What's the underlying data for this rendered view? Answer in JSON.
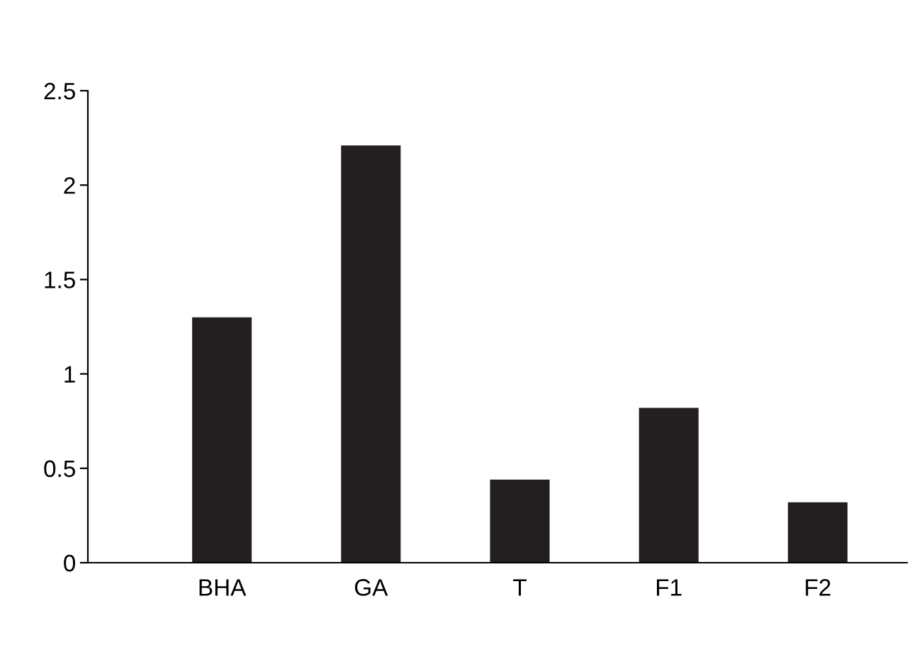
{
  "chart_data": {
    "type": "bar",
    "categories": [
      "BHA",
      "GA",
      "T",
      "F1",
      "F2"
    ],
    "values": [
      1.3,
      2.21,
      0.44,
      0.82,
      0.32
    ],
    "color": "#231f20",
    "ylim": [
      0,
      2.5
    ],
    "yticks": [
      0,
      0.5,
      1,
      1.5,
      2,
      2.5
    ],
    "grid": false,
    "legend": false
  }
}
